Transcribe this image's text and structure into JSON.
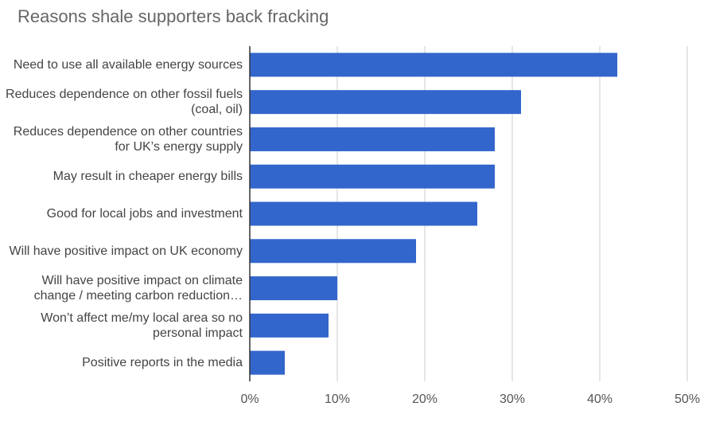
{
  "chart_data": {
    "type": "hbar",
    "title": "Reasons shale supporters back fracking",
    "categories": [
      "Need to use all available energy sources",
      "Reduces dependence on other fossil fuels (coal, oil)",
      "Reduces dependence on other countries for UK’s energy supply",
      "May result in cheaper energy bills",
      "Good for local jobs and investment",
      "Will have positive impact on UK economy",
      "Will have positive impact on climate change / meeting carbon reduction…",
      "Won’t affect me/my local area so no personal impact",
      "Positive reports in the media"
    ],
    "values": [
      42,
      31,
      28,
      28,
      26,
      19,
      10,
      9,
      4
    ],
    "color": "#3366cc",
    "xlim": [
      0,
      50
    ],
    "xticks": [
      {
        "value": 0,
        "label": "0%"
      },
      {
        "value": 10,
        "label": "10%"
      },
      {
        "value": 20,
        "label": "20%"
      },
      {
        "value": 30,
        "label": "30%"
      },
      {
        "value": 40,
        "label": "40%"
      },
      {
        "value": 50,
        "label": "50%"
      }
    ],
    "grid": true
  }
}
